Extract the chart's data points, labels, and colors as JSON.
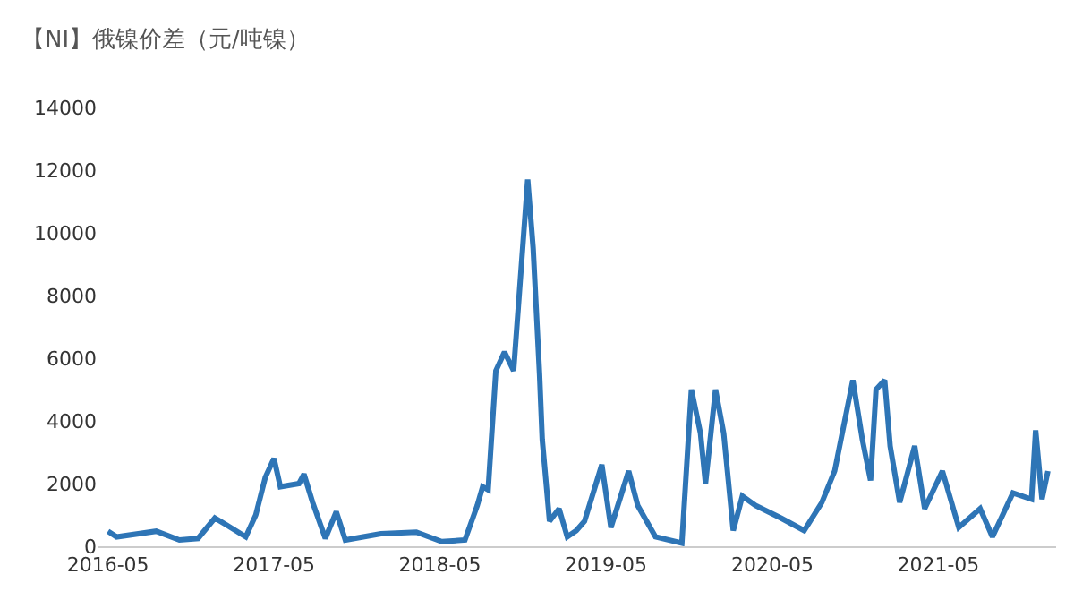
{
  "chart_data": {
    "type": "line",
    "title": "【NI】俄镍价差（元/吨镍）",
    "x": [
      "2016-05-01",
      "2016-05-20",
      "2016-08-15",
      "2016-10-05",
      "2016-11-15",
      "2016-12-22",
      "2017-01-20",
      "2017-02-28",
      "2017-03-22",
      "2017-04-12",
      "2017-05-01",
      "2017-05-15",
      "2017-06-25",
      "2017-07-06",
      "2017-07-25",
      "2017-08-22",
      "2017-09-15",
      "2017-10-05",
      "2017-12-22",
      "2018-03-10",
      "2018-05-05",
      "2018-06-25",
      "2018-07-22",
      "2018-08-03",
      "2018-08-15",
      "2018-09-01",
      "2018-09-20",
      "2018-10-10",
      "2018-11-10",
      "2018-11-22",
      "2018-12-06",
      "2018-12-12",
      "2018-12-28",
      "2019-01-18",
      "2019-02-05",
      "2019-02-25",
      "2019-03-15",
      "2019-04-22",
      "2019-05-12",
      "2019-06-20",
      "2019-07-10",
      "2019-08-18",
      "2019-10-15",
      "2019-11-05",
      "2019-11-25",
      "2019-12-06",
      "2019-12-28",
      "2020-01-15",
      "2020-02-05",
      "2020-02-25",
      "2020-03-25",
      "2020-05-20",
      "2020-07-10",
      "2020-08-18",
      "2020-09-15",
      "2020-10-25",
      "2020-11-15",
      "2020-12-03",
      "2020-12-15",
      "2021-01-03",
      "2021-01-15",
      "2021-02-05",
      "2021-03-10",
      "2021-04-01",
      "2021-05-10",
      "2021-06-15",
      "2021-08-01",
      "2021-08-28",
      "2021-10-12",
      "2021-11-22",
      "2021-12-01",
      "2021-12-15",
      "2021-12-28"
    ],
    "series": [
      {
        "color": "#2e75b6",
        "values": [
          480,
          300,
          480,
          200,
          250,
          900,
          650,
          300,
          1000,
          2200,
          2800,
          1900,
          2000,
          2300,
          1400,
          250,
          1100,
          200,
          400,
          450,
          150,
          200,
          1300,
          1900,
          1800,
          5600,
          6200,
          5600,
          11700,
          9500,
          5500,
          3400,
          800,
          1200,
          300,
          500,
          800,
          2600,
          600,
          2400,
          1300,
          300,
          100,
          5000,
          3600,
          2000,
          5000,
          3600,
          500,
          1600,
          1300,
          900,
          500,
          1400,
          2400,
          5300,
          3400,
          2100,
          5000,
          5300,
          3200,
          1400,
          3200,
          1200,
          2400,
          600,
          1200,
          300,
          1700,
          1500,
          3700,
          1500,
          2400
        ]
      }
    ],
    "xlim": [
      "2016-04-10",
      "2022-01-15"
    ],
    "xticks": [
      "2016-05",
      "2017-05",
      "2018-05",
      "2019-05",
      "2020-05",
      "2021-05"
    ],
    "ylim": [
      0,
      14000
    ],
    "yticks": [
      0,
      2000,
      4000,
      6000,
      8000,
      10000,
      12000,
      14000
    ],
    "legend": false,
    "marker": "none",
    "line_style": "solid"
  }
}
